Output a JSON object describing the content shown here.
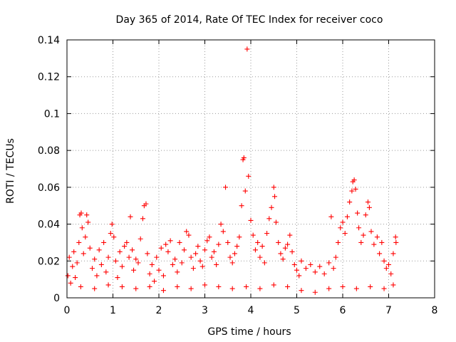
{
  "chart_data": {
    "type": "scatter",
    "title": "Day 365 of 2014, Rate Of TEC Index for receiver coco",
    "xlabel": "GPS time / hours",
    "ylabel": "ROTI / TECUs",
    "xlim": [
      0,
      8
    ],
    "ylim": [
      0,
      0.14
    ],
    "xticks": [
      0,
      1,
      2,
      3,
      4,
      5,
      6,
      7,
      8
    ],
    "xtick_labels": [
      "0",
      "1",
      "2",
      "3",
      "4",
      "5",
      "6",
      "7",
      "8"
    ],
    "yticks": [
      0,
      0.02,
      0.04,
      0.06,
      0.08,
      0.1,
      0.12,
      0.14
    ],
    "ytick_labels": [
      "0",
      "0.02",
      "0.04",
      "0.06",
      "0.08",
      "0.1",
      "0.12",
      "0.14"
    ],
    "grid": true,
    "marker": "plus",
    "marker_color": "#ff0000",
    "series": [
      {
        "name": "ROTI",
        "points": [
          [
            0.02,
            0.012
          ],
          [
            0.05,
            0.022
          ],
          [
            0.08,
            0.008
          ],
          [
            0.12,
            0.017
          ],
          [
            0.15,
            0.025
          ],
          [
            0.18,
            0.011
          ],
          [
            0.22,
            0.019
          ],
          [
            0.26,
            0.03
          ],
          [
            0.28,
            0.045
          ],
          [
            0.31,
            0.046
          ],
          [
            0.33,
            0.038
          ],
          [
            0.36,
            0.024
          ],
          [
            0.4,
            0.033
          ],
          [
            0.43,
            0.045
          ],
          [
            0.46,
            0.041
          ],
          [
            0.5,
            0.027
          ],
          [
            0.55,
            0.016
          ],
          [
            0.6,
            0.021
          ],
          [
            0.65,
            0.012
          ],
          [
            0.7,
            0.026
          ],
          [
            0.75,
            0.018
          ],
          [
            0.8,
            0.03
          ],
          [
            0.85,
            0.014
          ],
          [
            0.9,
            0.022
          ],
          [
            0.95,
            0.035
          ],
          [
            0.98,
            0.04
          ],
          [
            1.02,
            0.033
          ],
          [
            1.06,
            0.02
          ],
          [
            1.1,
            0.011
          ],
          [
            1.15,
            0.025
          ],
          [
            1.2,
            0.017
          ],
          [
            1.25,
            0.028
          ],
          [
            1.3,
            0.03
          ],
          [
            1.35,
            0.022
          ],
          [
            1.38,
            0.044
          ],
          [
            1.42,
            0.026
          ],
          [
            1.45,
            0.015
          ],
          [
            1.5,
            0.021
          ],
          [
            1.55,
            0.019
          ],
          [
            1.6,
            0.032
          ],
          [
            1.65,
            0.043
          ],
          [
            1.68,
            0.05
          ],
          [
            1.72,
            0.051
          ],
          [
            1.75,
            0.024
          ],
          [
            1.8,
            0.013
          ],
          [
            1.85,
            0.018
          ],
          [
            1.9,
            0.009
          ],
          [
            1.95,
            0.022
          ],
          [
            2.0,
            0.015
          ],
          [
            2.05,
            0.027
          ],
          [
            2.1,
            0.012
          ],
          [
            2.15,
            0.029
          ],
          [
            2.2,
            0.025
          ],
          [
            2.25,
            0.031
          ],
          [
            2.3,
            0.018
          ],
          [
            2.35,
            0.021
          ],
          [
            2.4,
            0.014
          ],
          [
            2.45,
            0.03
          ],
          [
            2.5,
            0.019
          ],
          [
            2.55,
            0.026
          ],
          [
            2.6,
            0.036
          ],
          [
            2.65,
            0.034
          ],
          [
            2.7,
            0.022
          ],
          [
            2.75,
            0.016
          ],
          [
            2.8,
            0.024
          ],
          [
            2.85,
            0.028
          ],
          [
            2.9,
            0.02
          ],
          [
            2.95,
            0.017
          ],
          [
            3.0,
            0.026
          ],
          [
            3.05,
            0.031
          ],
          [
            3.1,
            0.033
          ],
          [
            3.15,
            0.022
          ],
          [
            3.2,
            0.025
          ],
          [
            3.25,
            0.018
          ],
          [
            3.3,
            0.029
          ],
          [
            3.35,
            0.04
          ],
          [
            3.4,
            0.036
          ],
          [
            3.45,
            0.06
          ],
          [
            3.5,
            0.03
          ],
          [
            3.55,
            0.022
          ],
          [
            3.6,
            0.019
          ],
          [
            3.65,
            0.024
          ],
          [
            3.7,
            0.028
          ],
          [
            3.75,
            0.033
          ],
          [
            3.8,
            0.05
          ],
          [
            3.83,
            0.075
          ],
          [
            3.85,
            0.076
          ],
          [
            3.88,
            0.058
          ],
          [
            3.92,
            0.135
          ],
          [
            3.95,
            0.066
          ],
          [
            4.0,
            0.042
          ],
          [
            4.05,
            0.034
          ],
          [
            4.1,
            0.026
          ],
          [
            4.15,
            0.03
          ],
          [
            4.2,
            0.022
          ],
          [
            4.25,
            0.028
          ],
          [
            4.3,
            0.019
          ],
          [
            4.35,
            0.035
          ],
          [
            4.4,
            0.043
          ],
          [
            4.45,
            0.049
          ],
          [
            4.5,
            0.06
          ],
          [
            4.52,
            0.055
          ],
          [
            4.55,
            0.041
          ],
          [
            4.6,
            0.03
          ],
          [
            4.65,
            0.024
          ],
          [
            4.7,
            0.021
          ],
          [
            4.75,
            0.027
          ],
          [
            4.8,
            0.029
          ],
          [
            4.85,
            0.034
          ],
          [
            4.9,
            0.025
          ],
          [
            4.95,
            0.018
          ],
          [
            5.0,
            0.015
          ],
          [
            5.05,
            0.012
          ],
          [
            5.1,
            0.02
          ],
          [
            5.2,
            0.016
          ],
          [
            5.3,
            0.018
          ],
          [
            5.4,
            0.014
          ],
          [
            5.5,
            0.017
          ],
          [
            5.6,
            0.013
          ],
          [
            5.7,
            0.019
          ],
          [
            5.75,
            0.044
          ],
          [
            5.8,
            0.016
          ],
          [
            5.85,
            0.022
          ],
          [
            5.9,
            0.03
          ],
          [
            5.95,
            0.038
          ],
          [
            6.0,
            0.041
          ],
          [
            6.05,
            0.035
          ],
          [
            6.1,
            0.044
          ],
          [
            6.15,
            0.052
          ],
          [
            6.2,
            0.058
          ],
          [
            6.22,
            0.063
          ],
          [
            6.25,
            0.064
          ],
          [
            6.28,
            0.059
          ],
          [
            6.32,
            0.046
          ],
          [
            6.35,
            0.038
          ],
          [
            6.4,
            0.03
          ],
          [
            6.45,
            0.034
          ],
          [
            6.5,
            0.045
          ],
          [
            6.55,
            0.052
          ],
          [
            6.58,
            0.049
          ],
          [
            6.62,
            0.036
          ],
          [
            6.68,
            0.029
          ],
          [
            6.75,
            0.033
          ],
          [
            6.8,
            0.024
          ],
          [
            6.85,
            0.03
          ],
          [
            6.9,
            0.02
          ],
          [
            6.95,
            0.016
          ],
          [
            7.0,
            0.018
          ],
          [
            7.05,
            0.013
          ],
          [
            7.1,
            0.024
          ],
          [
            7.15,
            0.033
          ],
          [
            7.16,
            0.03
          ],
          [
            0.3,
            0.006
          ],
          [
            0.6,
            0.005
          ],
          [
            0.9,
            0.007
          ],
          [
            1.2,
            0.006
          ],
          [
            1.5,
            0.005
          ],
          [
            1.8,
            0.006
          ],
          [
            2.1,
            0.004
          ],
          [
            2.4,
            0.006
          ],
          [
            2.7,
            0.005
          ],
          [
            3.0,
            0.007
          ],
          [
            3.3,
            0.006
          ],
          [
            3.6,
            0.005
          ],
          [
            3.9,
            0.006
          ],
          [
            4.2,
            0.005
          ],
          [
            4.5,
            0.007
          ],
          [
            4.8,
            0.006
          ],
          [
            5.1,
            0.004
          ],
          [
            5.4,
            0.003
          ],
          [
            5.7,
            0.005
          ],
          [
            6.0,
            0.006
          ],
          [
            6.3,
            0.005
          ],
          [
            6.6,
            0.006
          ],
          [
            6.9,
            0.005
          ],
          [
            7.1,
            0.007
          ]
        ]
      }
    ]
  }
}
